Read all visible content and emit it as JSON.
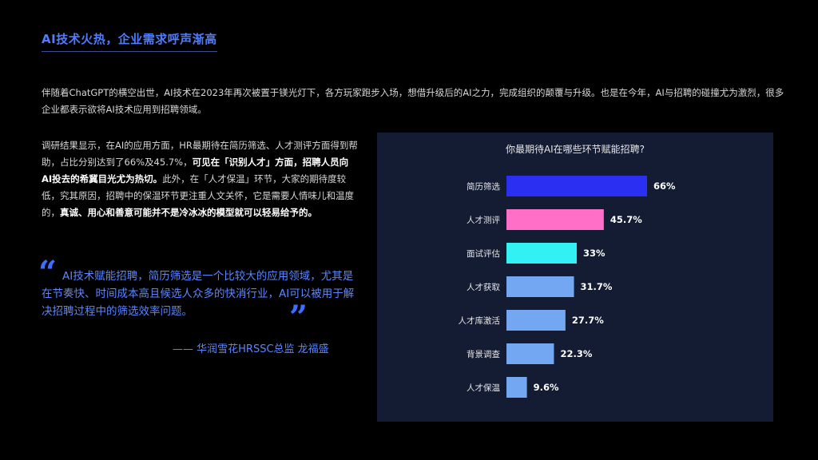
{
  "header": {
    "title": "AI技术火热，企业需求呼声渐高"
  },
  "intro": {
    "text": "伴随着ChatGPT的横空出世，AI技术在2023年再次被置于镁光灯下，各方玩家跑步入场，想借升级后的AI之力，完成组织的颠覆与升级。也是在今年，AI与招聘的碰撞尤为激烈，很多企业都表示欲将AI技术应用到招聘领域。"
  },
  "findings": {
    "p1": "调研结果显示，在AI的应用方面，HR最期待在简历筛选、人才测评方面得到帮助，占比分别达到了66%及45.7%，",
    "h1": "可见在「识别人才」方面，招聘人员向AI投去的希冀目光尤为热切。",
    "p2": "此外，在「人才保温」环节，大家的期待度较低，究其原因，招聘中的保温环节更注重人文关怀，它是需要人情味儿和温度的，",
    "h2": "真诚、用心和善意可能并不是冷冰冰的模型就可以轻易给予的。"
  },
  "quote": {
    "open_mark": "“",
    "close_mark": "”",
    "text": "AI技术赋能招聘，简历筛选是一个比较大的应用领域，尤其是在节奏快、时间成本高且候选人众多的快消行业，AI可以被用于解决招聘过程中的筛选效率问题。",
    "author": "—— 华润雪花HRSSC总监 龙福盛"
  },
  "chart_data": {
    "type": "bar",
    "orientation": "horizontal",
    "title": "你最期待AI在哪些环节赋能招聘?",
    "categories": [
      "简历筛选",
      "人才测评",
      "面试评估",
      "人才获取",
      "人才库激活",
      "背景调查",
      "人才保温"
    ],
    "values": [
      66,
      45.7,
      33,
      31.7,
      27.7,
      22.3,
      9.6
    ],
    "value_labels": [
      "66%",
      "45.7%",
      "33%",
      "31.7%",
      "27.7%",
      "22.3%",
      "9.6%"
    ],
    "unit": "%",
    "colors": [
      "#2a2ff2",
      "#ff6ec7",
      "#33f0f5",
      "#74a7f2",
      "#74a7f2",
      "#74a7f2",
      "#74a7f2"
    ],
    "grid": false,
    "legend": "none"
  }
}
